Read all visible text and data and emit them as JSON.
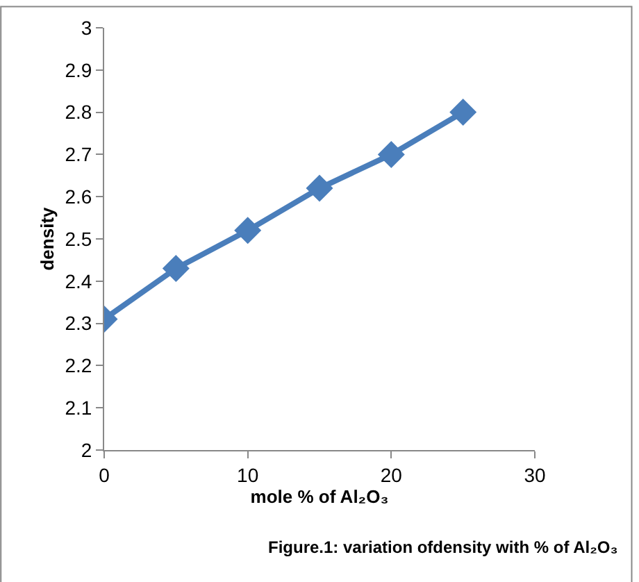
{
  "chart_data": {
    "type": "line",
    "xlabel": "mole % of Al₂O₃",
    "ylabel": "density",
    "annotations": [
      "Figure.1: variation ofdensity with % of Al₂O₃"
    ],
    "x": [
      0,
      5,
      10,
      15,
      20,
      25
    ],
    "series": [
      {
        "color": "#4a7ebb",
        "values": [
          2.31,
          2.43,
          2.52,
          2.62,
          2.7,
          2.8
        ]
      }
    ],
    "xlim": [
      0,
      30
    ],
    "xticks": [
      0,
      10,
      20,
      30
    ],
    "ylim": [
      2,
      3
    ],
    "yticks": [
      2,
      2.1,
      2.2,
      2.3,
      2.4,
      2.5,
      2.6,
      2.7,
      2.8,
      2.9,
      3
    ],
    "marker": "diamond",
    "line_style": "solid",
    "legend": false
  }
}
